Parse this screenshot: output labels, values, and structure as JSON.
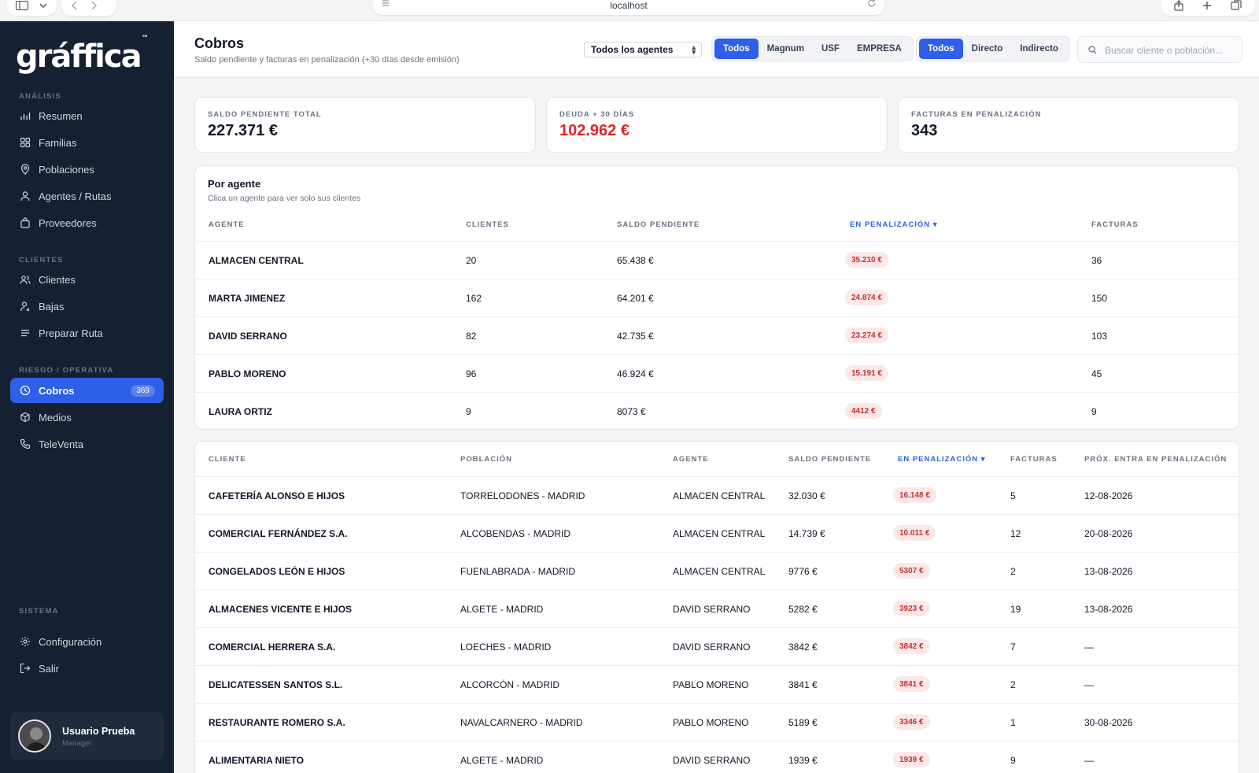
{
  "browser": {
    "url": "localhost"
  },
  "sidebar": {
    "logo": "gráffica",
    "logo_tm": "™",
    "sections": [
      {
        "label": "ANÁLISIS",
        "items": [
          {
            "label": "Resumen",
            "icon": "bar-chart-icon"
          },
          {
            "label": "Familias",
            "icon": "grid-icon"
          },
          {
            "label": "Poblaciones",
            "icon": "map-pin-icon"
          },
          {
            "label": "Agentes / Rutas",
            "icon": "user-icon"
          },
          {
            "label": "Proveedores",
            "icon": "bag-icon"
          }
        ]
      },
      {
        "label": "CLIENTES",
        "items": [
          {
            "label": "Clientes",
            "icon": "users-icon"
          },
          {
            "label": "Bajas",
            "icon": "user-remove-icon"
          },
          {
            "label": "Preparar Ruta",
            "icon": "list-icon"
          }
        ]
      },
      {
        "label": "RIESGO / OPERATIVA",
        "items": [
          {
            "label": "Cobros",
            "icon": "clock-icon",
            "badge": "369",
            "active": true
          },
          {
            "label": "Medios",
            "icon": "box-icon"
          },
          {
            "label": "TeleVenta",
            "icon": "phone-icon"
          }
        ]
      },
      {
        "label": "SISTEMA",
        "items": [
          {
            "label": "Configuración",
            "icon": "gear-icon"
          },
          {
            "label": "Salir",
            "icon": "logout-icon"
          }
        ]
      }
    ],
    "user": {
      "name": "Usuario Prueba",
      "role": "Manager"
    }
  },
  "header": {
    "title": "Cobros",
    "subtitle": "Saldo pendiente y facturas en penalización (+30 días desde emisión)",
    "agent_select": "Todos los agentes",
    "company_filter": [
      "Todos",
      "Magnum",
      "USF",
      "EMPRESA"
    ],
    "channel_filter": [
      "Todos",
      "Directo",
      "Indirecto"
    ],
    "search_placeholder": "Buscar cliente o población..."
  },
  "kpis": [
    {
      "label": "SALDO PENDIENTE TOTAL",
      "value": "227.371 €"
    },
    {
      "label": "DEUDA + 30 DÍAS",
      "value": "102.962 €"
    },
    {
      "label": "FACTURAS EN PENALIZACIÓN",
      "value": "343"
    }
  ],
  "agents_table": {
    "title": "Por agente",
    "subtitle": "Clica un agente para ver solo sus clientes",
    "columns": [
      "AGENTE",
      "CLIENTES",
      "SALDO PENDIENTE",
      "EN PENALIZACIÓN ▾",
      "FACTURAS"
    ],
    "rows": [
      [
        "ALMACEN CENTRAL",
        "20",
        "65.438 €",
        "35.210 €",
        "36"
      ],
      [
        "MARTA JIMENEZ",
        "162",
        "64.201 €",
        "24.874 €",
        "150"
      ],
      [
        "DAVID SERRANO",
        "82",
        "42.735 €",
        "23.274 €",
        "103"
      ],
      [
        "PABLO MORENO",
        "96",
        "46.924 €",
        "15.191 €",
        "45"
      ],
      [
        "LAURA ORTIZ",
        "9",
        "8073 €",
        "4412 €",
        "9"
      ]
    ]
  },
  "clients_table": {
    "columns": [
      "CLIENTE",
      "POBLACIÓN",
      "AGENTE",
      "SALDO PENDIENTE",
      "EN PENALIZACIÓN ▾",
      "FACTURAS",
      "PRÓX. ENTRA EN PENALIZACIÓN"
    ],
    "rows": [
      [
        "CAFETERÍA ALONSO E HIJOS",
        "TORRELODONES - MADRID",
        "ALMACEN CENTRAL",
        "32.030 €",
        "16.148 €",
        "5",
        "12-08-2026"
      ],
      [
        "COMERCIAL FERNÁNDEZ S.A.",
        "ALCOBENDAS - MADRID",
        "ALMACEN CENTRAL",
        "14.739 €",
        "10.011 €",
        "12",
        "20-08-2026"
      ],
      [
        "CONGELADOS LEÓN E HIJOS",
        "FUENLABRADA - MADRID",
        "ALMACEN CENTRAL",
        "9776 €",
        "5307 €",
        "2",
        "13-08-2026"
      ],
      [
        "ALMACENES VICENTE E HIJOS",
        "ALGETE - MADRID",
        "DAVID SERRANO",
        "5282 €",
        "3923 €",
        "19",
        "13-08-2026"
      ],
      [
        "COMERCIAL HERRERA S.A.",
        "LOECHES - MADRID",
        "DAVID SERRANO",
        "3842 €",
        "3842 €",
        "7",
        "—"
      ],
      [
        "DELICATESSEN SANTOS S.L.",
        "ALCORCÓN - MADRID",
        "PABLO MORENO",
        "3841 €",
        "3841 €",
        "2",
        "—"
      ],
      [
        "RESTAURANTE ROMERO S.A.",
        "NAVALCARNERO - MADRID",
        "PABLO MORENO",
        "5189 €",
        "3346 €",
        "1",
        "30-08-2026"
      ],
      [
        "ALIMENTARIA NIETO",
        "ALGETE - MADRID",
        "DAVID SERRANO",
        "1939 €",
        "1939 €",
        "9",
        "—"
      ]
    ]
  },
  "colors": {
    "accent": "#2f5ee8",
    "sidebar": "#162033",
    "danger": "#dc2626",
    "pill_bg": "#fde8e8"
  }
}
